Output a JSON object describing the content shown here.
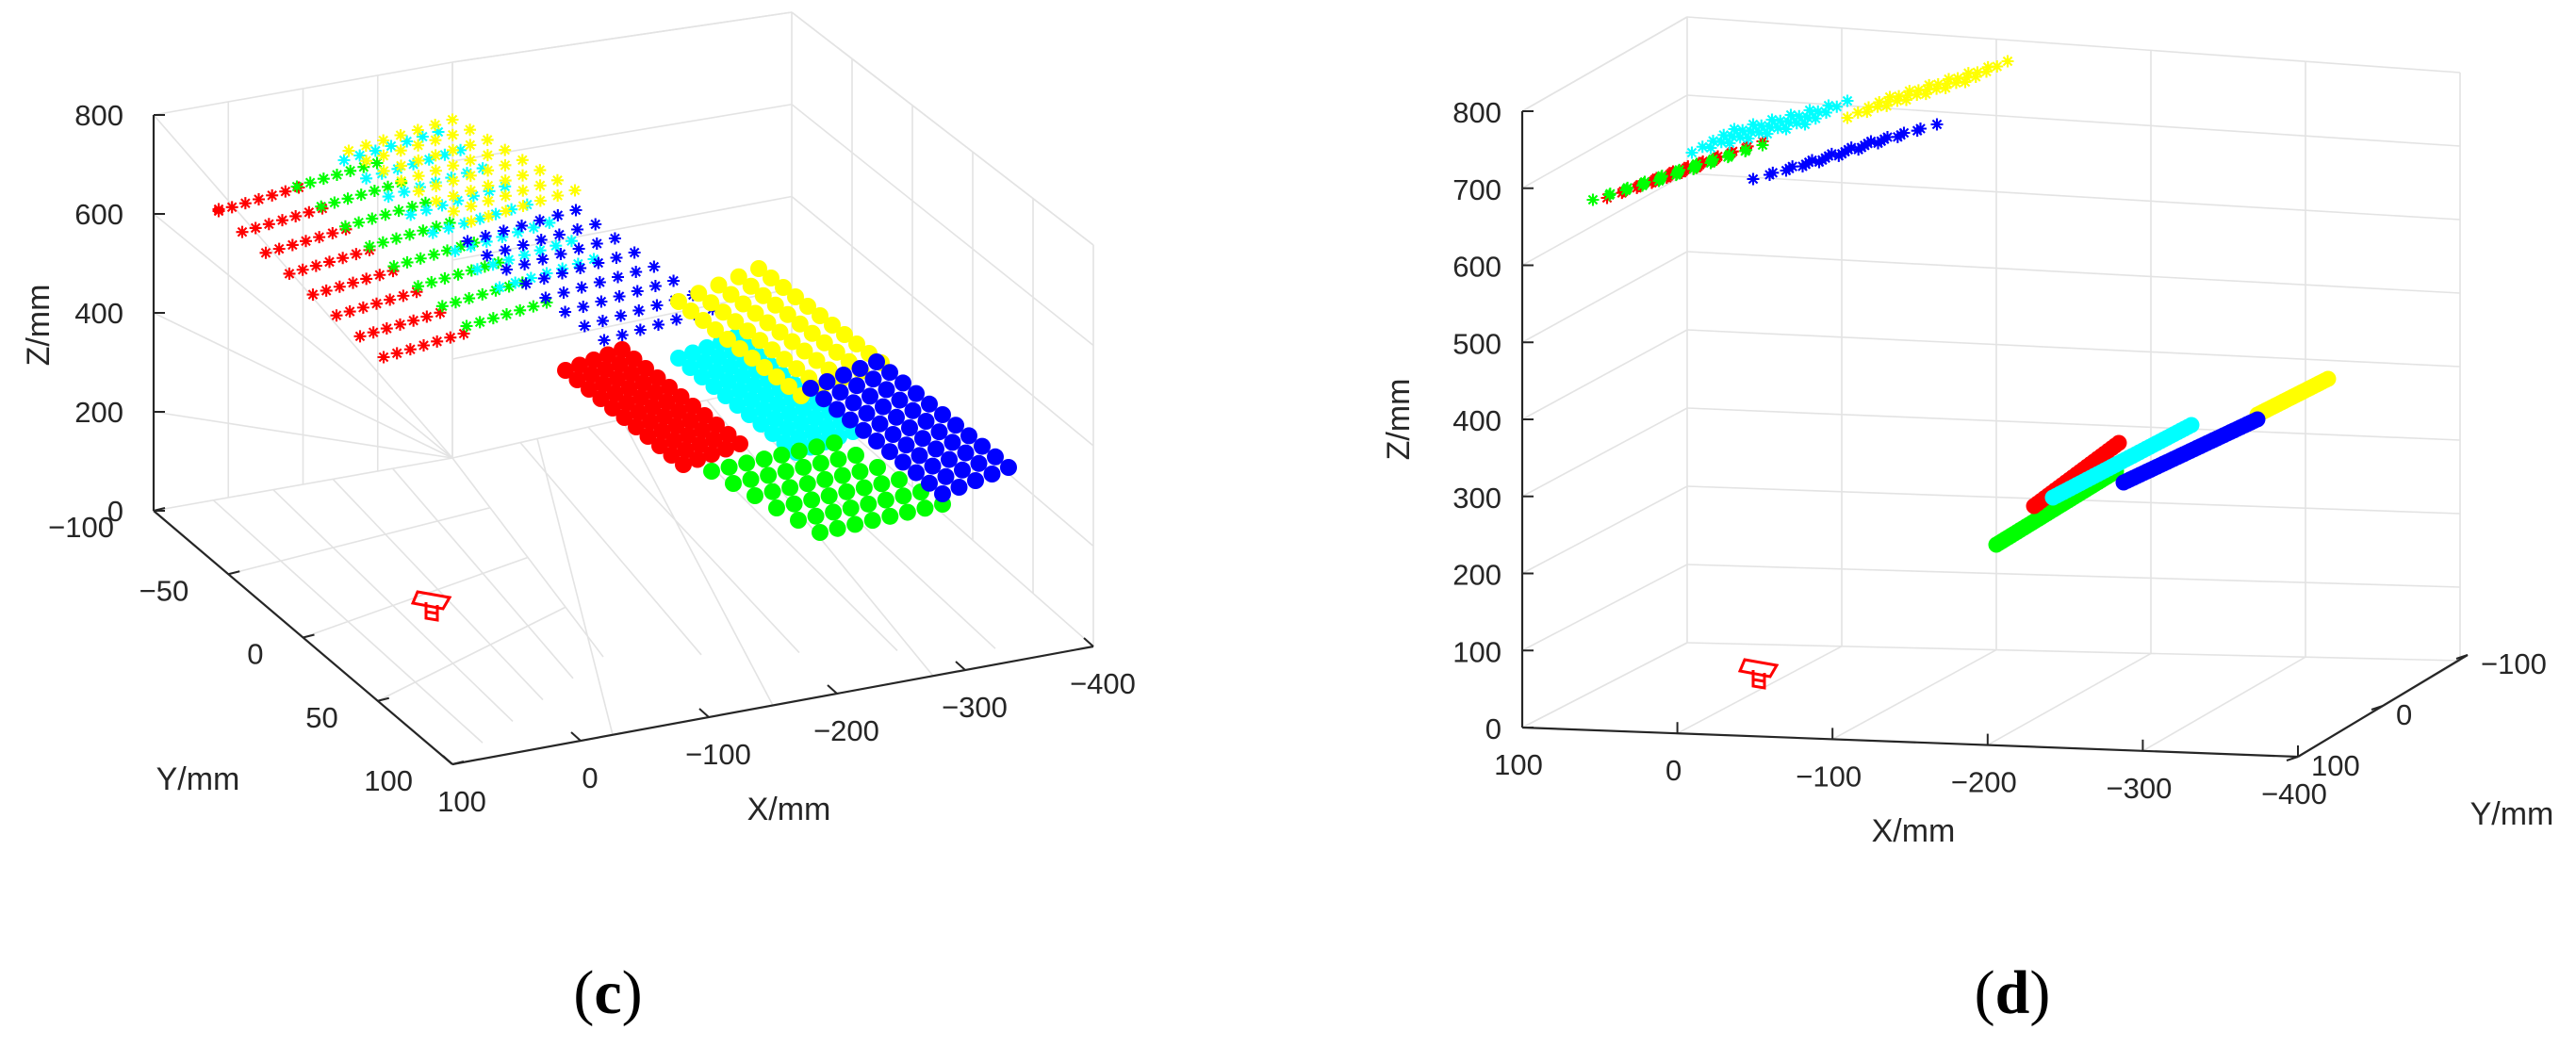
{
  "colors": {
    "red": "#ff0000",
    "cyan": "#00ffff",
    "yellow": "#ffff00",
    "blue": "#0000ff",
    "green": "#00ff00",
    "camera": "#ff0000"
  },
  "chart_data": [
    {
      "panel": "c",
      "type": "scatter",
      "view": "3d",
      "xlabel": "X/mm",
      "ylabel": "Y/mm",
      "zlabel": "Z/mm",
      "xlim": [
        100,
        -400
      ],
      "ylim": [
        -100,
        100
      ],
      "zlim": [
        0,
        800
      ],
      "xticks": [
        "100",
        "0",
        "−100",
        "−200",
        "−300",
        "−400"
      ],
      "yticks": [
        "−100",
        "−50",
        "0",
        "50",
        "100"
      ],
      "zticks": [
        "0",
        "200",
        "400",
        "600",
        "800"
      ],
      "grid": true,
      "series": [
        {
          "color": "red",
          "marker": "asterisk",
          "plane": "upper"
        },
        {
          "color": "cyan",
          "marker": "asterisk",
          "plane": "upper"
        },
        {
          "color": "yellow",
          "marker": "asterisk",
          "plane": "upper"
        },
        {
          "color": "blue",
          "marker": "asterisk",
          "plane": "upper"
        },
        {
          "color": "green",
          "marker": "asterisk",
          "plane": "upper"
        },
        {
          "color": "red",
          "marker": "dot",
          "plane": "lower"
        },
        {
          "color": "cyan",
          "marker": "dot",
          "plane": "lower"
        },
        {
          "color": "yellow",
          "marker": "dot",
          "plane": "lower"
        },
        {
          "color": "blue",
          "marker": "dot",
          "plane": "lower"
        },
        {
          "color": "green",
          "marker": "dot",
          "plane": "lower"
        }
      ]
    },
    {
      "panel": "d",
      "type": "scatter",
      "view": "3d",
      "xlabel": "X/mm",
      "ylabel": "Y/mm",
      "zlabel": "Z/mm",
      "xlim": [
        100,
        -400
      ],
      "ylim": [
        -100,
        100
      ],
      "zlim": [
        0,
        800
      ],
      "xticks": [
        "100",
        "0",
        "−100",
        "−200",
        "−300",
        "−400"
      ],
      "yticks": [
        "−100",
        "0",
        "100"
      ],
      "zticks": [
        "0",
        "100",
        "200",
        "300",
        "400",
        "500",
        "600",
        "700",
        "800"
      ],
      "grid": true,
      "series": [
        {
          "color": "red",
          "marker": "asterisk",
          "plane": "upper"
        },
        {
          "color": "cyan",
          "marker": "asterisk",
          "plane": "upper"
        },
        {
          "color": "yellow",
          "marker": "asterisk",
          "plane": "upper"
        },
        {
          "color": "blue",
          "marker": "asterisk",
          "plane": "upper"
        },
        {
          "color": "green",
          "marker": "asterisk",
          "plane": "upper"
        },
        {
          "color": "red",
          "marker": "dot",
          "plane": "lower"
        },
        {
          "color": "cyan",
          "marker": "dot",
          "plane": "lower"
        },
        {
          "color": "yellow",
          "marker": "dot",
          "plane": "lower"
        },
        {
          "color": "blue",
          "marker": "dot",
          "plane": "lower"
        },
        {
          "color": "green",
          "marker": "dot",
          "plane": "lower"
        }
      ]
    }
  ],
  "captions": {
    "c": {
      "open": "(",
      "letter": "c",
      "close": ")"
    },
    "d": {
      "open": "(",
      "letter": "d",
      "close": ")"
    }
  }
}
